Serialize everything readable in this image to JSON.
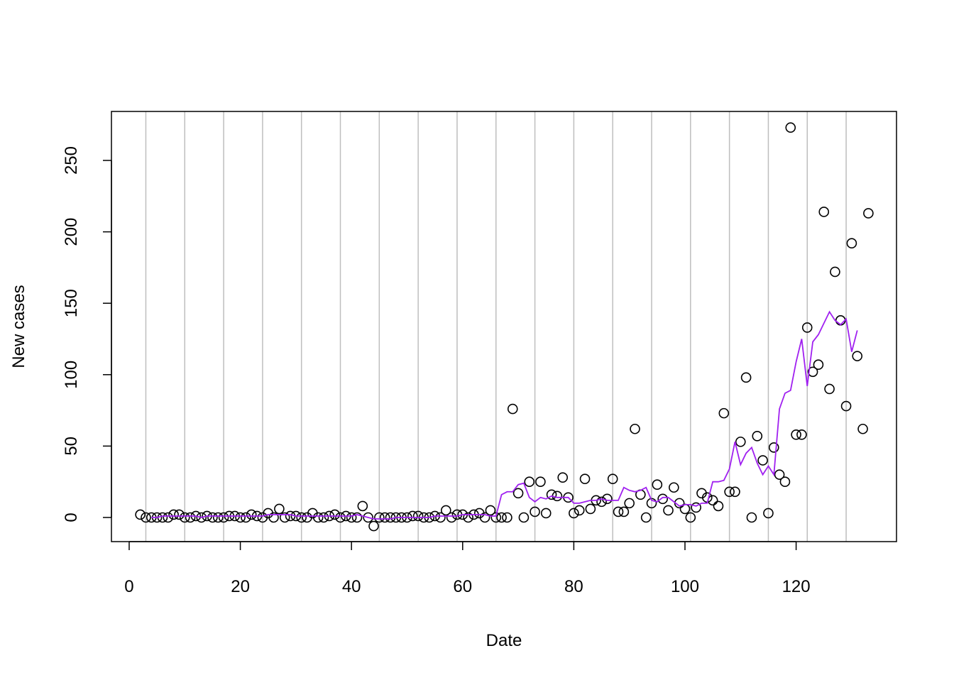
{
  "chart_data": {
    "type": "scatter",
    "xlabel": "Date",
    "ylabel": "New cases",
    "xlim": [
      -3.19,
      138.06
    ],
    "ylim": [
      -16.9,
      284.3
    ],
    "xticks": [
      0,
      20,
      40,
      60,
      80,
      100,
      120
    ],
    "yticks": [
      0,
      50,
      100,
      150,
      200,
      250
    ],
    "vlines": [
      3,
      10,
      17,
      24,
      31,
      38,
      45,
      52,
      59,
      66,
      73,
      80,
      87,
      94,
      101,
      108,
      115,
      122,
      129
    ],
    "vline_color": "#bebebe",
    "series": [
      {
        "style": "points",
        "color": "#000000",
        "x": [
          2,
          3,
          4,
          5,
          6,
          7,
          8,
          9,
          10,
          11,
          12,
          13,
          14,
          15,
          16,
          17,
          18,
          19,
          20,
          21,
          22,
          23,
          24,
          25,
          26,
          27,
          28,
          29,
          30,
          31,
          32,
          33,
          34,
          35,
          36,
          37,
          38,
          39,
          40,
          41,
          42,
          43,
          44,
          45,
          46,
          47,
          48,
          49,
          50,
          51,
          52,
          53,
          54,
          55,
          56,
          57,
          58,
          59,
          60,
          61,
          62,
          63,
          64,
          65,
          66,
          67,
          68,
          69,
          70,
          71,
          72,
          73,
          74,
          75,
          76,
          77,
          78,
          79,
          80,
          81,
          82,
          83,
          84,
          85,
          86,
          87,
          88,
          89,
          90,
          91,
          92,
          93,
          94,
          95,
          96,
          97,
          98,
          99,
          100,
          101,
          102,
          103,
          104,
          105,
          106,
          107,
          108,
          109,
          110,
          111,
          112,
          113,
          114,
          115,
          116,
          117,
          118,
          119,
          120,
          121,
          122,
          123,
          124,
          125,
          126,
          127,
          128,
          129,
          130,
          131,
          132,
          133
        ],
        "values": [
          2,
          0,
          0,
          0,
          0,
          0,
          2,
          2,
          0,
          0,
          1,
          0,
          1,
          0,
          0,
          0,
          1,
          1,
          0,
          0,
          2,
          1,
          0,
          3,
          0,
          6,
          0,
          1,
          1,
          0,
          0,
          3,
          0,
          0,
          1,
          2,
          0,
          1,
          0,
          0,
          8,
          0,
          -6,
          0,
          0,
          0,
          0,
          0,
          0,
          1,
          1,
          0,
          0,
          1,
          0,
          5,
          0,
          2,
          2,
          0,
          2,
          3,
          0,
          5,
          0,
          0,
          0,
          76,
          17,
          0,
          25,
          4,
          25,
          3,
          16,
          15,
          28,
          14,
          3,
          5,
          27,
          6,
          12,
          11,
          13,
          27,
          4,
          4,
          10,
          62,
          16,
          0,
          10,
          23,
          13,
          5,
          21,
          10,
          6,
          0,
          7,
          17,
          14,
          12,
          8,
          73,
          18,
          18,
          53,
          98,
          0,
          57,
          40,
          3,
          49,
          30,
          25,
          273,
          58,
          58,
          133,
          102,
          107,
          214,
          90,
          172,
          138,
          78,
          192,
          113,
          62,
          213
        ]
      },
      {
        "style": "line",
        "color": "#a020f0",
        "x": [
          4,
          5,
          6,
          7,
          8,
          9,
          10,
          11,
          12,
          13,
          14,
          15,
          16,
          17,
          18,
          19,
          20,
          21,
          22,
          23,
          24,
          25,
          26,
          27,
          28,
          29,
          30,
          31,
          32,
          33,
          34,
          35,
          36,
          37,
          38,
          39,
          40,
          41,
          42,
          43,
          44,
          45,
          46,
          47,
          48,
          49,
          50,
          51,
          52,
          53,
          54,
          55,
          56,
          57,
          58,
          59,
          60,
          61,
          62,
          63,
          64,
          65,
          66,
          67,
          68,
          69,
          70,
          71,
          72,
          73,
          74,
          75,
          76,
          77,
          78,
          79,
          80,
          81,
          82,
          83,
          84,
          85,
          86,
          87,
          88,
          89,
          90,
          91,
          92,
          93,
          94,
          95,
          96,
          97,
          98,
          99,
          100,
          101,
          102,
          103,
          104,
          105,
          106,
          107,
          108,
          109,
          110,
          111,
          112,
          113,
          114,
          115,
          116,
          117,
          118,
          119,
          120,
          121,
          122,
          123,
          124,
          125,
          126,
          127,
          128,
          129,
          130,
          131
        ],
        "values": [
          0,
          0,
          1,
          1,
          1,
          1,
          1,
          1,
          1,
          0,
          1,
          1,
          1,
          1,
          1,
          1,
          1,
          1,
          1,
          1,
          1,
          2,
          2,
          2,
          2,
          2,
          1,
          1,
          1,
          1,
          1,
          1,
          1,
          1,
          1,
          1,
          1,
          2,
          1,
          0,
          -1,
          -1,
          -1,
          -1,
          0,
          0,
          0,
          0,
          0,
          0,
          0,
          1,
          1,
          1,
          1,
          1,
          2,
          2,
          2,
          2,
          2,
          1,
          1,
          16,
          18,
          18,
          23,
          24,
          14,
          11,
          14,
          13,
          15,
          14,
          14,
          14,
          10,
          10,
          11,
          12,
          12,
          13,
          12,
          12,
          12,
          21,
          19,
          18,
          19,
          21,
          12,
          11,
          14,
          14,
          11,
          8,
          9,
          9,
          8,
          10,
          10,
          25,
          25,
          26,
          34,
          53,
          37,
          45,
          49,
          38,
          30,
          36,
          30,
          76,
          87,
          89,
          109,
          125,
          92,
          123,
          128,
          136,
          144,
          138,
          135,
          139,
          116,
          131
        ]
      }
    ]
  }
}
